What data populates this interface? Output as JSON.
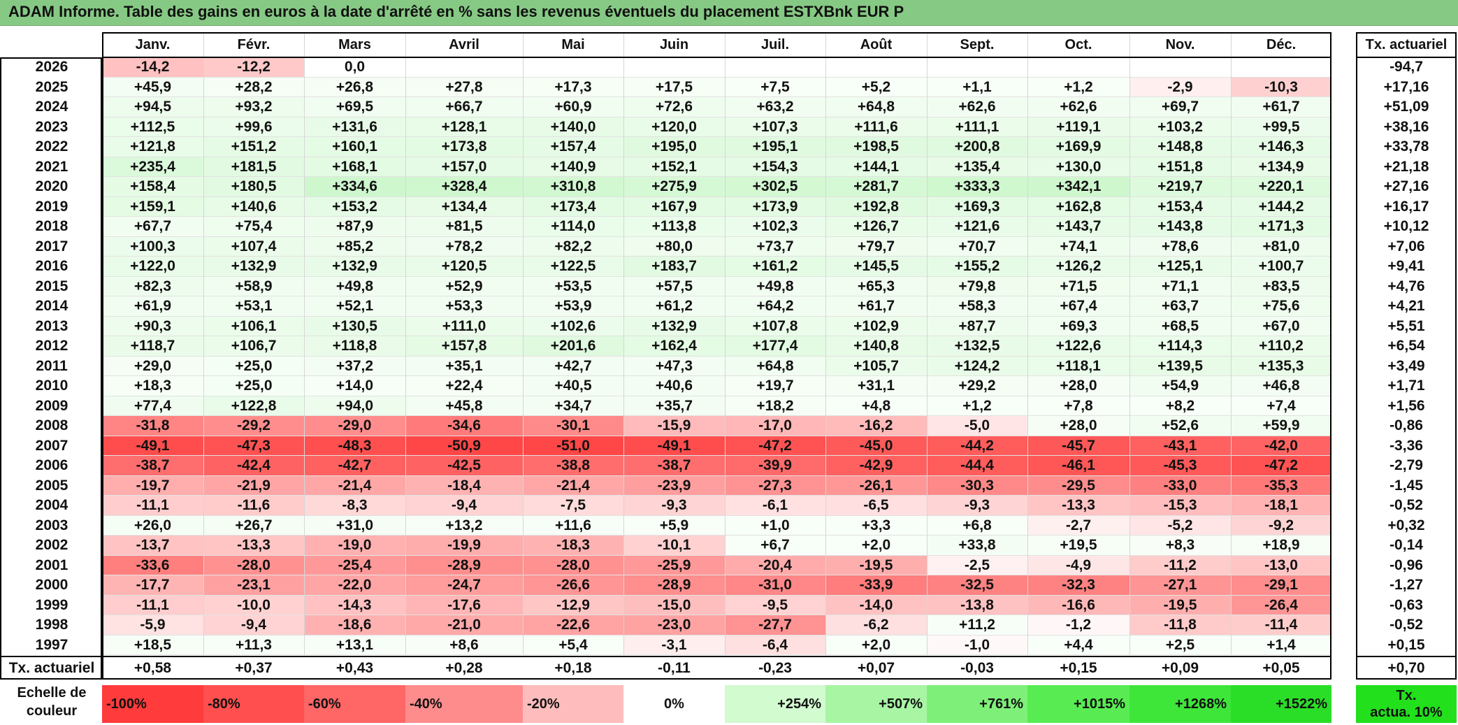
{
  "title": "ADAM Informe. Table des gains en euros à la date d'arrêté en % sans les revenus éventuels du placement ESTXBnk EUR P",
  "months": [
    "Janv.",
    "Févr.",
    "Mars",
    "Avril",
    "Mai",
    "Juin",
    "Juil.",
    "Août",
    "Sept.",
    "Oct.",
    "Nov.",
    "Déc."
  ],
  "rate_header": "Tx. actuariel",
  "rows": [
    {
      "year": "2026",
      "values": [
        "-14,2",
        "-12,2",
        "0,0",
        "",
        "",
        "",
        "",
        "",
        "",
        "",
        "",
        ""
      ],
      "rate": "-94,7"
    },
    {
      "year": "2025",
      "values": [
        "+45,9",
        "+28,2",
        "+26,8",
        "+27,8",
        "+17,3",
        "+17,5",
        "+7,5",
        "+5,2",
        "+1,1",
        "+1,2",
        "-2,9",
        "-10,3"
      ],
      "rate": "+17,16"
    },
    {
      "year": "2024",
      "values": [
        "+94,5",
        "+93,2",
        "+69,5",
        "+66,7",
        "+60,9",
        "+72,6",
        "+63,2",
        "+64,8",
        "+62,6",
        "+62,6",
        "+69,7",
        "+61,7"
      ],
      "rate": "+51,09"
    },
    {
      "year": "2023",
      "values": [
        "+112,5",
        "+99,6",
        "+131,6",
        "+128,1",
        "+140,0",
        "+120,0",
        "+107,3",
        "+111,6",
        "+111,1",
        "+119,1",
        "+103,2",
        "+99,5"
      ],
      "rate": "+38,16"
    },
    {
      "year": "2022",
      "values": [
        "+121,8",
        "+151,2",
        "+160,1",
        "+173,8",
        "+157,4",
        "+195,0",
        "+195,1",
        "+198,5",
        "+200,8",
        "+169,9",
        "+148,8",
        "+146,3"
      ],
      "rate": "+33,78"
    },
    {
      "year": "2021",
      "values": [
        "+235,4",
        "+181,5",
        "+168,1",
        "+157,0",
        "+140,9",
        "+152,1",
        "+154,3",
        "+144,1",
        "+135,4",
        "+130,0",
        "+151,8",
        "+134,9"
      ],
      "rate": "+21,18"
    },
    {
      "year": "2020",
      "values": [
        "+158,4",
        "+180,5",
        "+334,6",
        "+328,4",
        "+310,8",
        "+275,9",
        "+302,5",
        "+281,7",
        "+333,3",
        "+342,1",
        "+219,7",
        "+220,1"
      ],
      "rate": "+27,16"
    },
    {
      "year": "2019",
      "values": [
        "+159,1",
        "+140,6",
        "+153,2",
        "+134,4",
        "+173,4",
        "+167,9",
        "+173,9",
        "+192,8",
        "+169,3",
        "+162,8",
        "+153,4",
        "+144,2"
      ],
      "rate": "+16,17"
    },
    {
      "year": "2018",
      "values": [
        "+67,7",
        "+75,4",
        "+87,9",
        "+81,5",
        "+114,0",
        "+113,8",
        "+102,3",
        "+126,7",
        "+121,6",
        "+143,7",
        "+143,8",
        "+171,3"
      ],
      "rate": "+10,12"
    },
    {
      "year": "2017",
      "values": [
        "+100,3",
        "+107,4",
        "+85,2",
        "+78,2",
        "+82,2",
        "+80,0",
        "+73,7",
        "+79,7",
        "+70,7",
        "+74,1",
        "+78,6",
        "+81,0"
      ],
      "rate": "+7,06"
    },
    {
      "year": "2016",
      "values": [
        "+122,0",
        "+132,9",
        "+132,9",
        "+120,5",
        "+122,5",
        "+183,7",
        "+161,2",
        "+145,5",
        "+155,2",
        "+126,2",
        "+125,1",
        "+100,7"
      ],
      "rate": "+9,41"
    },
    {
      "year": "2015",
      "values": [
        "+82,3",
        "+58,9",
        "+49,8",
        "+52,9",
        "+53,5",
        "+57,5",
        "+49,8",
        "+65,3",
        "+79,8",
        "+71,5",
        "+71,1",
        "+83,5"
      ],
      "rate": "+4,76"
    },
    {
      "year": "2014",
      "values": [
        "+61,9",
        "+53,1",
        "+52,1",
        "+53,3",
        "+53,9",
        "+61,2",
        "+64,2",
        "+61,7",
        "+58,3",
        "+67,4",
        "+63,7",
        "+75,6"
      ],
      "rate": "+4,21"
    },
    {
      "year": "2013",
      "values": [
        "+90,3",
        "+106,1",
        "+130,5",
        "+111,0",
        "+102,6",
        "+132,9",
        "+107,8",
        "+102,9",
        "+87,7",
        "+69,3",
        "+68,5",
        "+67,0"
      ],
      "rate": "+5,51"
    },
    {
      "year": "2012",
      "values": [
        "+118,7",
        "+106,7",
        "+118,8",
        "+157,8",
        "+201,6",
        "+162,4",
        "+177,4",
        "+140,8",
        "+132,5",
        "+122,6",
        "+114,3",
        "+110,2"
      ],
      "rate": "+6,54"
    },
    {
      "year": "2011",
      "values": [
        "+29,0",
        "+25,0",
        "+37,2",
        "+35,1",
        "+42,7",
        "+47,3",
        "+64,8",
        "+105,7",
        "+124,2",
        "+118,1",
        "+139,5",
        "+135,3"
      ],
      "rate": "+3,49"
    },
    {
      "year": "2010",
      "values": [
        "+18,3",
        "+25,0",
        "+14,0",
        "+22,4",
        "+40,5",
        "+40,6",
        "+19,7",
        "+31,1",
        "+29,2",
        "+28,0",
        "+54,9",
        "+46,8"
      ],
      "rate": "+1,71"
    },
    {
      "year": "2009",
      "values": [
        "+77,4",
        "+122,8",
        "+94,0",
        "+45,8",
        "+34,7",
        "+35,7",
        "+18,2",
        "+4,8",
        "+1,2",
        "+7,8",
        "+8,2",
        "+7,4"
      ],
      "rate": "+1,56"
    },
    {
      "year": "2008",
      "values": [
        "-31,8",
        "-29,2",
        "-29,0",
        "-34,6",
        "-30,1",
        "-15,9",
        "-17,0",
        "-16,2",
        "-5,0",
        "+28,0",
        "+52,6",
        "+59,9"
      ],
      "rate": "-0,86"
    },
    {
      "year": "2007",
      "values": [
        "-49,1",
        "-47,3",
        "-48,3",
        "-50,9",
        "-51,0",
        "-49,1",
        "-47,2",
        "-45,0",
        "-44,2",
        "-45,7",
        "-43,1",
        "-42,0"
      ],
      "rate": "-3,36"
    },
    {
      "year": "2006",
      "values": [
        "-38,7",
        "-42,4",
        "-42,7",
        "-42,5",
        "-38,8",
        "-38,7",
        "-39,9",
        "-42,9",
        "-44,4",
        "-46,1",
        "-45,3",
        "-47,2"
      ],
      "rate": "-2,79"
    },
    {
      "year": "2005",
      "values": [
        "-19,7",
        "-21,9",
        "-21,4",
        "-18,4",
        "-21,4",
        "-23,9",
        "-27,3",
        "-26,1",
        "-30,3",
        "-29,5",
        "-33,0",
        "-35,3"
      ],
      "rate": "-1,45"
    },
    {
      "year": "2004",
      "values": [
        "-11,1",
        "-11,6",
        "-8,3",
        "-9,4",
        "-7,5",
        "-9,3",
        "-6,1",
        "-6,5",
        "-9,3",
        "-13,3",
        "-15,3",
        "-18,1"
      ],
      "rate": "-0,52"
    },
    {
      "year": "2003",
      "values": [
        "+26,0",
        "+26,7",
        "+31,0",
        "+13,2",
        "+11,6",
        "+5,9",
        "+1,0",
        "+3,3",
        "+6,8",
        "-2,7",
        "-5,2",
        "-9,2"
      ],
      "rate": "+0,32"
    },
    {
      "year": "2002",
      "values": [
        "-13,7",
        "-13,3",
        "-19,0",
        "-19,9",
        "-18,3",
        "-10,1",
        "+6,7",
        "+2,0",
        "+33,8",
        "+19,5",
        "+8,3",
        "+18,9"
      ],
      "rate": "-0,14"
    },
    {
      "year": "2001",
      "values": [
        "-33,6",
        "-28,0",
        "-25,4",
        "-28,9",
        "-28,0",
        "-25,9",
        "-20,4",
        "-19,5",
        "-2,5",
        "-4,9",
        "-11,2",
        "-13,0"
      ],
      "rate": "-0,96"
    },
    {
      "year": "2000",
      "values": [
        "-17,7",
        "-23,1",
        "-22,0",
        "-24,7",
        "-26,6",
        "-28,9",
        "-31,0",
        "-33,9",
        "-32,5",
        "-32,3",
        "-27,1",
        "-29,1"
      ],
      "rate": "-1,27"
    },
    {
      "year": "1999",
      "values": [
        "-11,1",
        "-10,0",
        "-14,3",
        "-17,6",
        "-12,9",
        "-15,0",
        "-9,5",
        "-14,0",
        "-13,8",
        "-16,6",
        "-19,5",
        "-26,4"
      ],
      "rate": "-0,63"
    },
    {
      "year": "1998",
      "values": [
        "-5,9",
        "-9,4",
        "-18,6",
        "-21,0",
        "-22,6",
        "-23,0",
        "-27,7",
        "-6,2",
        "+11,2",
        "-1,2",
        "-11,8",
        "-11,4"
      ],
      "rate": "-0,52"
    },
    {
      "year": "1997",
      "values": [
        "+18,5",
        "+11,3",
        "+13,1",
        "+8,6",
        "+5,4",
        "-3,1",
        "-6,4",
        "+2,0",
        "-1,0",
        "+4,4",
        "+2,5",
        "+1,4"
      ],
      "rate": "+0,15"
    }
  ],
  "rate_row": {
    "label": "Tx. actuariel",
    "values": [
      "+0,58",
      "+0,37",
      "+0,43",
      "+0,28",
      "+0,18",
      "-0,11",
      "-0,23",
      "+0,07",
      "-0,03",
      "+0,15",
      "+0,09",
      "+0,05"
    ],
    "total": "+0,70"
  },
  "legend": {
    "label_line1": "Echelle de",
    "label_line2": "couleur",
    "scale": [
      {
        "text": "-100%",
        "color": "#ff3b3b",
        "align": "left"
      },
      {
        "text": "-80%",
        "color": "#ff4f4f",
        "align": "left"
      },
      {
        "text": "-60%",
        "color": "#ff6666",
        "align": "left"
      },
      {
        "text": "-40%",
        "color": "#ff8c8c",
        "align": "left"
      },
      {
        "text": "-20%",
        "color": "#ffbcbc",
        "align": "left"
      },
      {
        "text": "0%",
        "color": "#ffffff",
        "align": "center"
      },
      {
        "text": "+254%",
        "color": "#d2fbd0",
        "align": "right"
      },
      {
        "text": "+507%",
        "color": "#a8f5a4",
        "align": "right"
      },
      {
        "text": "+761%",
        "color": "#7ef079",
        "align": "right"
      },
      {
        "text": "+1015%",
        "color": "#58ec52",
        "align": "right"
      },
      {
        "text": "+1268%",
        "color": "#3ee63a",
        "align": "right"
      },
      {
        "text": "+1522%",
        "color": "#2ade28",
        "align": "right"
      }
    ],
    "tx_line1": "Tx.",
    "tx_line2": "actua. 10%",
    "tx_color": "#22e01c"
  },
  "colors": {
    "title_bg": "#86c984",
    "negative_max": "#ff3b3b",
    "positive_max": "#2ade28"
  }
}
